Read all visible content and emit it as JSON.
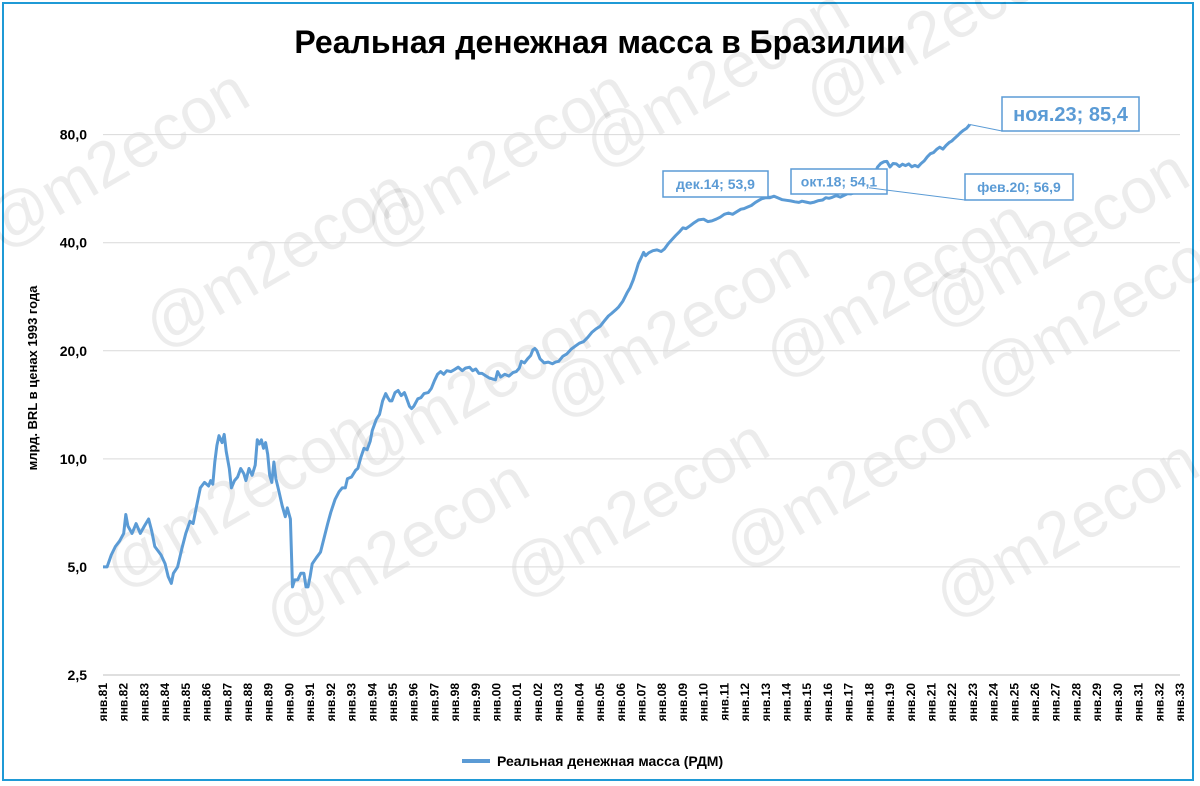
{
  "chart_data": {
    "type": "line",
    "title": "Реальная денежная масса в Бразилии",
    "ylabel": "млрд. BRL в ценах 1993 года",
    "xlabel": "",
    "yscale": "log",
    "ylim": [
      2.5,
      110
    ],
    "yticks": [
      2.5,
      5.0,
      10.0,
      20.0,
      40.0,
      80.0
    ],
    "ytick_labels": [
      "2,5",
      "5,0",
      "10,0",
      "20,0",
      "40,0",
      "80,0"
    ],
    "xlim": [
      1981,
      2033
    ],
    "x_ticks": [
      1981,
      1982,
      1983,
      1984,
      1985,
      1986,
      1987,
      1988,
      1989,
      1990,
      1991,
      1992,
      1993,
      1994,
      1995,
      1996,
      1997,
      1998,
      1999,
      2000,
      2001,
      2002,
      2003,
      2004,
      2005,
      2006,
      2007,
      2008,
      2009,
      2010,
      2011,
      2012,
      2013,
      2014,
      2015,
      2016,
      2017,
      2018,
      2019,
      2020,
      2021,
      2022,
      2023,
      2024,
      2025,
      2026,
      2027,
      2028,
      2029,
      2030,
      2031,
      2032,
      2033
    ],
    "x_tick_labels": [
      "янв.81",
      "янв.82",
      "янв.83",
      "янв.84",
      "янв.85",
      "янв.86",
      "янв.87",
      "янв.88",
      "янв.89",
      "янв.90",
      "янв.91",
      "янв.92",
      "янв.93",
      "янв.94",
      "янв.95",
      "янв.96",
      "янв.97",
      "янв.98",
      "янв.99",
      "янв.00",
      "янв.01",
      "янв.02",
      "янв.03",
      "янв.04",
      "янв.05",
      "янв.06",
      "янв.07",
      "янв.08",
      "янв.09",
      "янв.10",
      "янв.11",
      "янв.12",
      "янв.13",
      "янв.14",
      "янв.15",
      "янв.16",
      "янв.17",
      "янв.18",
      "янв.19",
      "янв.20",
      "янв.21",
      "янв.22",
      "янв.23",
      "янв.24",
      "янв.25",
      "янв.26",
      "янв.27",
      "янв.28",
      "янв.29",
      "янв.30",
      "янв.31",
      "янв.32",
      "янв.33"
    ],
    "grid": true,
    "legend_position": "bottom-center",
    "series": [
      {
        "name": "Реальная денежная масса (РДМ)",
        "color": "#5b9bd5",
        "points": [
          [
            1981.0,
            5.0
          ],
          [
            1981.2,
            5.0
          ],
          [
            1981.4,
            5.4
          ],
          [
            1981.6,
            5.7
          ],
          [
            1981.8,
            5.9
          ],
          [
            1982.0,
            6.2
          ],
          [
            1982.1,
            7.0
          ],
          [
            1982.2,
            6.5
          ],
          [
            1982.4,
            6.2
          ],
          [
            1982.5,
            6.4
          ],
          [
            1982.6,
            6.6
          ],
          [
            1982.8,
            6.2
          ],
          [
            1983.0,
            6.5
          ],
          [
            1983.2,
            6.8
          ],
          [
            1983.35,
            6.3
          ],
          [
            1983.5,
            5.7
          ],
          [
            1983.8,
            5.4
          ],
          [
            1984.0,
            5.1
          ],
          [
            1984.15,
            4.7
          ],
          [
            1984.3,
            4.5
          ],
          [
            1984.4,
            4.8
          ],
          [
            1984.6,
            5.0
          ],
          [
            1984.8,
            5.6
          ],
          [
            1985.0,
            6.2
          ],
          [
            1985.2,
            6.7
          ],
          [
            1985.35,
            6.6
          ],
          [
            1985.5,
            7.3
          ],
          [
            1985.7,
            8.3
          ],
          [
            1985.9,
            8.6
          ],
          [
            1986.1,
            8.4
          ],
          [
            1986.2,
            8.7
          ],
          [
            1986.3,
            8.5
          ],
          [
            1986.4,
            9.8
          ],
          [
            1986.5,
            10.9
          ],
          [
            1986.6,
            11.6
          ],
          [
            1986.75,
            11.1
          ],
          [
            1986.85,
            11.7
          ],
          [
            1986.95,
            10.5
          ],
          [
            1987.1,
            9.4
          ],
          [
            1987.2,
            8.3
          ],
          [
            1987.35,
            8.7
          ],
          [
            1987.5,
            8.9
          ],
          [
            1987.65,
            9.4
          ],
          [
            1987.8,
            9.1
          ],
          [
            1987.9,
            8.7
          ],
          [
            1988.05,
            9.4
          ],
          [
            1988.2,
            9.0
          ],
          [
            1988.35,
            9.6
          ],
          [
            1988.45,
            11.3
          ],
          [
            1988.55,
            11.0
          ],
          [
            1988.65,
            11.3
          ],
          [
            1988.75,
            10.7
          ],
          [
            1988.85,
            11.1
          ],
          [
            1988.95,
            10.3
          ],
          [
            1989.05,
            9.0
          ],
          [
            1989.15,
            8.6
          ],
          [
            1989.25,
            9.8
          ],
          [
            1989.35,
            8.8
          ],
          [
            1989.5,
            8.1
          ],
          [
            1989.65,
            7.4
          ],
          [
            1989.8,
            6.9
          ],
          [
            1989.9,
            7.3
          ],
          [
            1990.05,
            6.8
          ],
          [
            1990.15,
            4.4
          ],
          [
            1990.25,
            4.6
          ],
          [
            1990.4,
            4.6
          ],
          [
            1990.55,
            4.8
          ],
          [
            1990.7,
            4.8
          ],
          [
            1990.8,
            4.4
          ],
          [
            1990.9,
            4.4
          ],
          [
            1991.0,
            4.7
          ],
          [
            1991.1,
            5.1
          ],
          [
            1991.3,
            5.3
          ],
          [
            1991.5,
            5.5
          ],
          [
            1991.7,
            6.1
          ],
          [
            1991.85,
            6.6
          ],
          [
            1992.0,
            7.1
          ],
          [
            1992.2,
            7.7
          ],
          [
            1992.4,
            8.1
          ],
          [
            1992.55,
            8.3
          ],
          [
            1992.7,
            8.3
          ],
          [
            1992.8,
            8.8
          ],
          [
            1993.0,
            8.9
          ],
          [
            1993.2,
            9.3
          ],
          [
            1993.3,
            9.4
          ],
          [
            1993.45,
            10.1
          ],
          [
            1993.6,
            10.7
          ],
          [
            1993.75,
            10.6
          ],
          [
            1993.9,
            11.2
          ],
          [
            1994.0,
            12.0
          ],
          [
            1994.2,
            12.9
          ],
          [
            1994.35,
            13.3
          ],
          [
            1994.5,
            14.5
          ],
          [
            1994.65,
            15.2
          ],
          [
            1994.75,
            14.8
          ],
          [
            1994.85,
            14.5
          ],
          [
            1994.95,
            14.5
          ],
          [
            1995.1,
            15.3
          ],
          [
            1995.25,
            15.5
          ],
          [
            1995.4,
            15.0
          ],
          [
            1995.55,
            15.3
          ],
          [
            1995.65,
            14.8
          ],
          [
            1995.8,
            14.0
          ],
          [
            1995.9,
            13.8
          ],
          [
            1996.0,
            14.0
          ],
          [
            1996.2,
            14.7
          ],
          [
            1996.35,
            14.8
          ],
          [
            1996.5,
            15.2
          ],
          [
            1996.7,
            15.3
          ],
          [
            1996.85,
            15.7
          ],
          [
            1997.0,
            16.5
          ],
          [
            1997.15,
            17.2
          ],
          [
            1997.3,
            17.5
          ],
          [
            1997.45,
            17.2
          ],
          [
            1997.6,
            17.6
          ],
          [
            1997.8,
            17.5
          ],
          [
            1997.95,
            17.7
          ],
          [
            1998.15,
            18.0
          ],
          [
            1998.35,
            17.6
          ],
          [
            1998.5,
            17.9
          ],
          [
            1998.7,
            18.0
          ],
          [
            1998.85,
            17.6
          ],
          [
            1999.0,
            17.8
          ],
          [
            1999.15,
            17.3
          ],
          [
            1999.3,
            17.3
          ],
          [
            1999.5,
            17.0
          ],
          [
            1999.65,
            16.8
          ],
          [
            1999.8,
            16.7
          ],
          [
            1999.95,
            16.6
          ],
          [
            2000.05,
            17.5
          ],
          [
            2000.2,
            16.9
          ],
          [
            2000.4,
            17.2
          ],
          [
            2000.6,
            17.0
          ],
          [
            2000.8,
            17.4
          ],
          [
            2000.95,
            17.5
          ],
          [
            2001.1,
            17.9
          ],
          [
            2001.2,
            18.7
          ],
          [
            2001.35,
            18.5
          ],
          [
            2001.5,
            19.0
          ],
          [
            2001.65,
            19.4
          ],
          [
            2001.75,
            20.1
          ],
          [
            2001.85,
            20.3
          ],
          [
            2001.95,
            20.0
          ],
          [
            2002.1,
            19.0
          ],
          [
            2002.3,
            18.5
          ],
          [
            2002.5,
            18.6
          ],
          [
            2002.7,
            18.4
          ],
          [
            2002.85,
            18.6
          ],
          [
            2003.0,
            18.7
          ],
          [
            2003.2,
            19.3
          ],
          [
            2003.4,
            19.6
          ],
          [
            2003.6,
            20.2
          ],
          [
            2003.8,
            20.6
          ],
          [
            2004.0,
            21.0
          ],
          [
            2004.2,
            21.2
          ],
          [
            2004.4,
            21.8
          ],
          [
            2004.6,
            22.5
          ],
          [
            2004.8,
            23.0
          ],
          [
            2005.0,
            23.4
          ],
          [
            2005.2,
            24.2
          ],
          [
            2005.4,
            25.0
          ],
          [
            2005.55,
            25.4
          ],
          [
            2005.75,
            26.0
          ],
          [
            2005.9,
            26.5
          ],
          [
            2006.1,
            27.5
          ],
          [
            2006.3,
            29.0
          ],
          [
            2006.45,
            30.0
          ],
          [
            2006.6,
            31.5
          ],
          [
            2006.75,
            33.5
          ],
          [
            2006.85,
            35.0
          ],
          [
            2006.95,
            36.0
          ],
          [
            2007.05,
            37.0
          ],
          [
            2007.1,
            37.6
          ],
          [
            2007.2,
            36.8
          ],
          [
            2007.35,
            37.5
          ],
          [
            2007.55,
            38.0
          ],
          [
            2007.75,
            38.2
          ],
          [
            2007.95,
            37.8
          ],
          [
            2008.1,
            38.4
          ],
          [
            2008.3,
            39.8
          ],
          [
            2008.5,
            41.0
          ],
          [
            2008.65,
            41.9
          ],
          [
            2008.85,
            43.0
          ],
          [
            2009.0,
            44.0
          ],
          [
            2009.15,
            43.8
          ],
          [
            2009.35,
            44.6
          ],
          [
            2009.55,
            45.5
          ],
          [
            2009.75,
            46.3
          ],
          [
            2010.0,
            46.5
          ],
          [
            2010.2,
            45.8
          ],
          [
            2010.4,
            46.0
          ],
          [
            2010.6,
            46.5
          ],
          [
            2010.8,
            47.1
          ],
          [
            2011.0,
            48.0
          ],
          [
            2011.2,
            48.4
          ],
          [
            2011.4,
            48.0
          ],
          [
            2011.6,
            48.8
          ],
          [
            2011.8,
            49.6
          ],
          [
            2011.95,
            49.8
          ],
          [
            2012.1,
            50.2
          ],
          [
            2012.3,
            50.8
          ],
          [
            2012.5,
            51.8
          ],
          [
            2012.65,
            52.4
          ],
          [
            2012.8,
            53.0
          ],
          [
            2013.0,
            53.4
          ],
          [
            2013.2,
            53.4
          ],
          [
            2013.4,
            53.9
          ],
          [
            2013.6,
            53.3
          ],
          [
            2013.8,
            52.7
          ],
          [
            2014.0,
            52.5
          ],
          [
            2014.2,
            52.3
          ],
          [
            2014.4,
            52.0
          ],
          [
            2014.6,
            51.8
          ],
          [
            2014.75,
            52.2
          ],
          [
            2014.95,
            51.9
          ],
          [
            2015.15,
            51.6
          ],
          [
            2015.35,
            51.9
          ],
          [
            2015.55,
            52.4
          ],
          [
            2015.75,
            52.6
          ],
          [
            2015.9,
            53.4
          ],
          [
            2016.05,
            53.2
          ],
          [
            2016.2,
            53.5
          ],
          [
            2016.4,
            54.1
          ],
          [
            2016.6,
            53.6
          ],
          [
            2016.8,
            54.3
          ],
          [
            2016.95,
            54.8
          ],
          [
            2017.1,
            54.7
          ],
          [
            2017.3,
            55.2
          ],
          [
            2017.5,
            55.5
          ],
          [
            2017.7,
            55.9
          ],
          [
            2017.85,
            56.5
          ],
          [
            2017.98,
            56.9
          ],
          [
            2018.1,
            58.2
          ],
          [
            2018.2,
            60.5
          ],
          [
            2018.3,
            63.0
          ],
          [
            2018.4,
            65.0
          ],
          [
            2018.55,
            66.5
          ],
          [
            2018.7,
            67.2
          ],
          [
            2018.85,
            67.4
          ],
          [
            2019.0,
            65.0
          ],
          [
            2019.15,
            66.5
          ],
          [
            2019.3,
            66.3
          ],
          [
            2019.45,
            65.2
          ],
          [
            2019.6,
            66.2
          ],
          [
            2019.75,
            65.6
          ],
          [
            2019.9,
            66.3
          ],
          [
            2020.05,
            65.1
          ],
          [
            2020.2,
            65.7
          ],
          [
            2020.35,
            65.1
          ],
          [
            2020.5,
            66.5
          ],
          [
            2020.65,
            67.6
          ],
          [
            2020.8,
            69.4
          ],
          [
            2020.95,
            70.8
          ],
          [
            2021.1,
            71.3
          ],
          [
            2021.25,
            72.8
          ],
          [
            2021.4,
            73.8
          ],
          [
            2021.55,
            72.9
          ],
          [
            2021.7,
            74.6
          ],
          [
            2021.85,
            76.0
          ],
          [
            2021.98,
            76.8
          ],
          [
            2022.12,
            78.2
          ],
          [
            2022.25,
            79.4
          ],
          [
            2022.4,
            81.0
          ],
          [
            2022.55,
            82.3
          ],
          [
            2022.7,
            83.4
          ],
          [
            2022.85,
            85.4
          ]
        ]
      }
    ],
    "annotations": [
      {
        "label": "дек.14; 53,9"
      },
      {
        "label": "окт.18; 54,1"
      },
      {
        "label": "фев.20; 56,9"
      },
      {
        "label": "ноя.23; 85,4"
      }
    ],
    "watermark": "@m2econ"
  }
}
